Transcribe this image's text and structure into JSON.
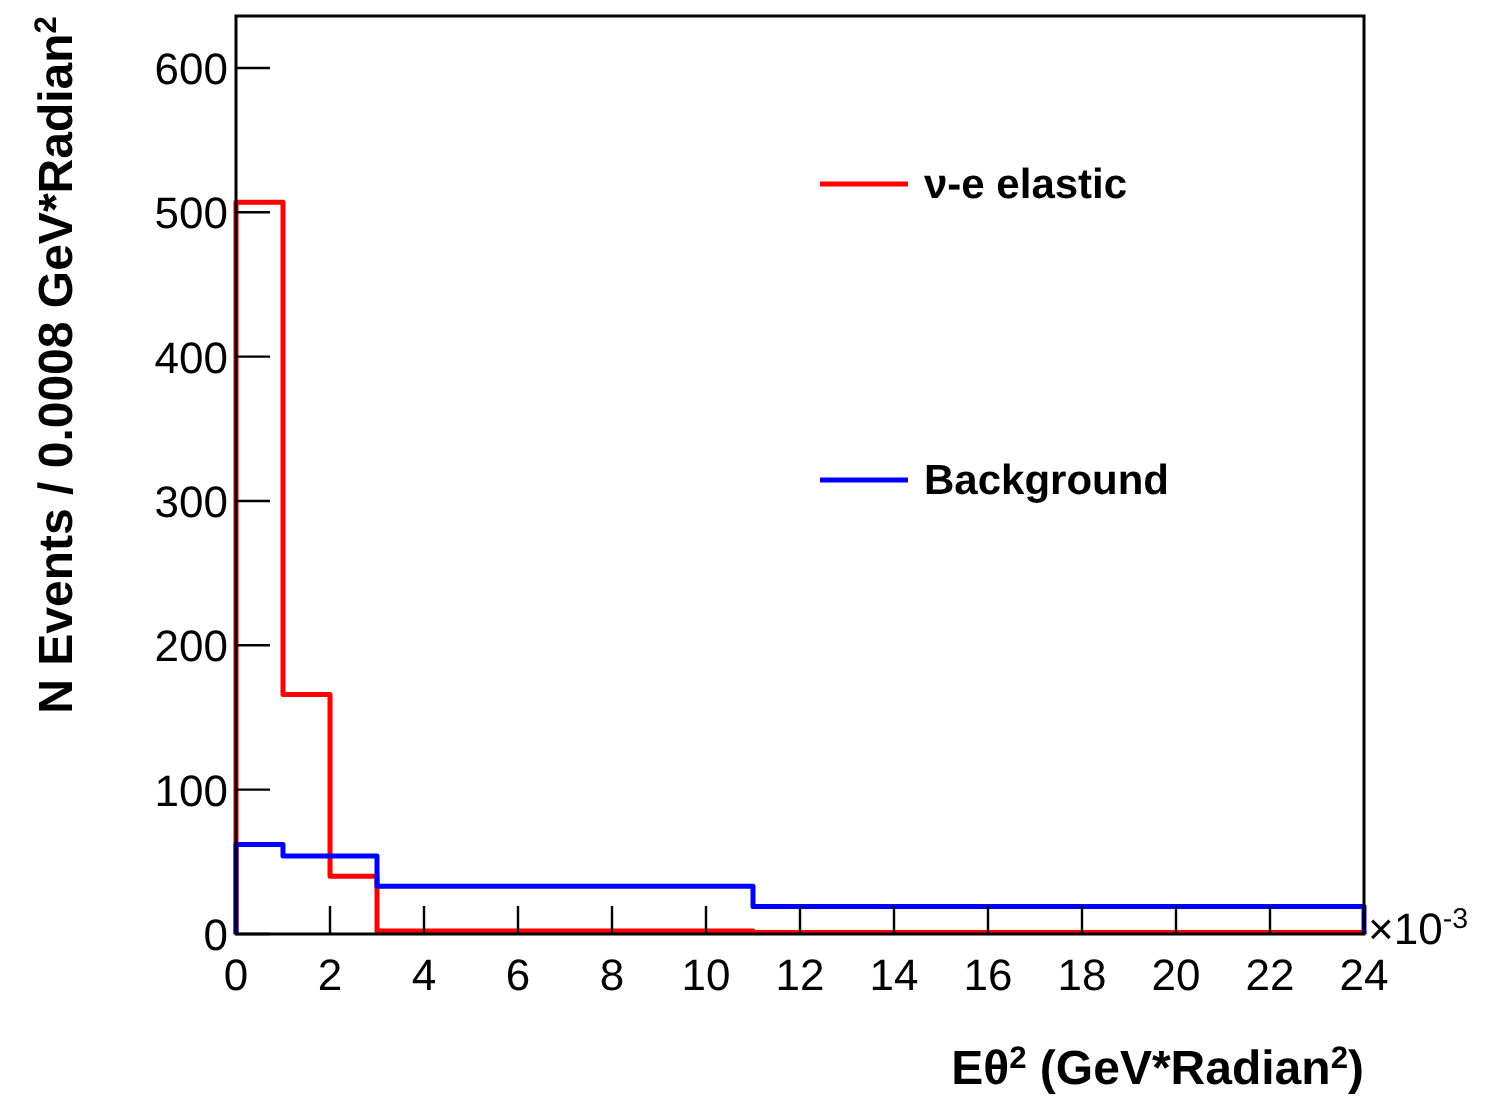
{
  "chart_data": {
    "type": "histogram",
    "xlabel": "Eθ$^{2}$  (GeV*Radian$^{2}$)",
    "ylabel": "N Events / 0.0008 GeV*Radian$^{2}$",
    "bins": [
      0,
      1,
      2,
      3,
      11,
      24
    ],
    "series": [
      {
        "name": "ν-e elastic",
        "color": "#ff0000",
        "values": [
          507,
          166,
          40,
          2,
          1
        ]
      },
      {
        "name": "Background",
        "color": "#0000ff",
        "values": [
          62,
          54,
          54,
          33,
          19
        ]
      }
    ],
    "xlim": [
      0,
      24
    ],
    "xticks": [
      0,
      2,
      4,
      6,
      8,
      10,
      12,
      14,
      16,
      18,
      20,
      22,
      24
    ],
    "ylim": [
      0,
      636
    ],
    "yticks": [
      0,
      100,
      200,
      300,
      400,
      500,
      600
    ],
    "annotations": [
      "×10$^{-3}$"
    ],
    "legend": "top right",
    "grid": false
  }
}
